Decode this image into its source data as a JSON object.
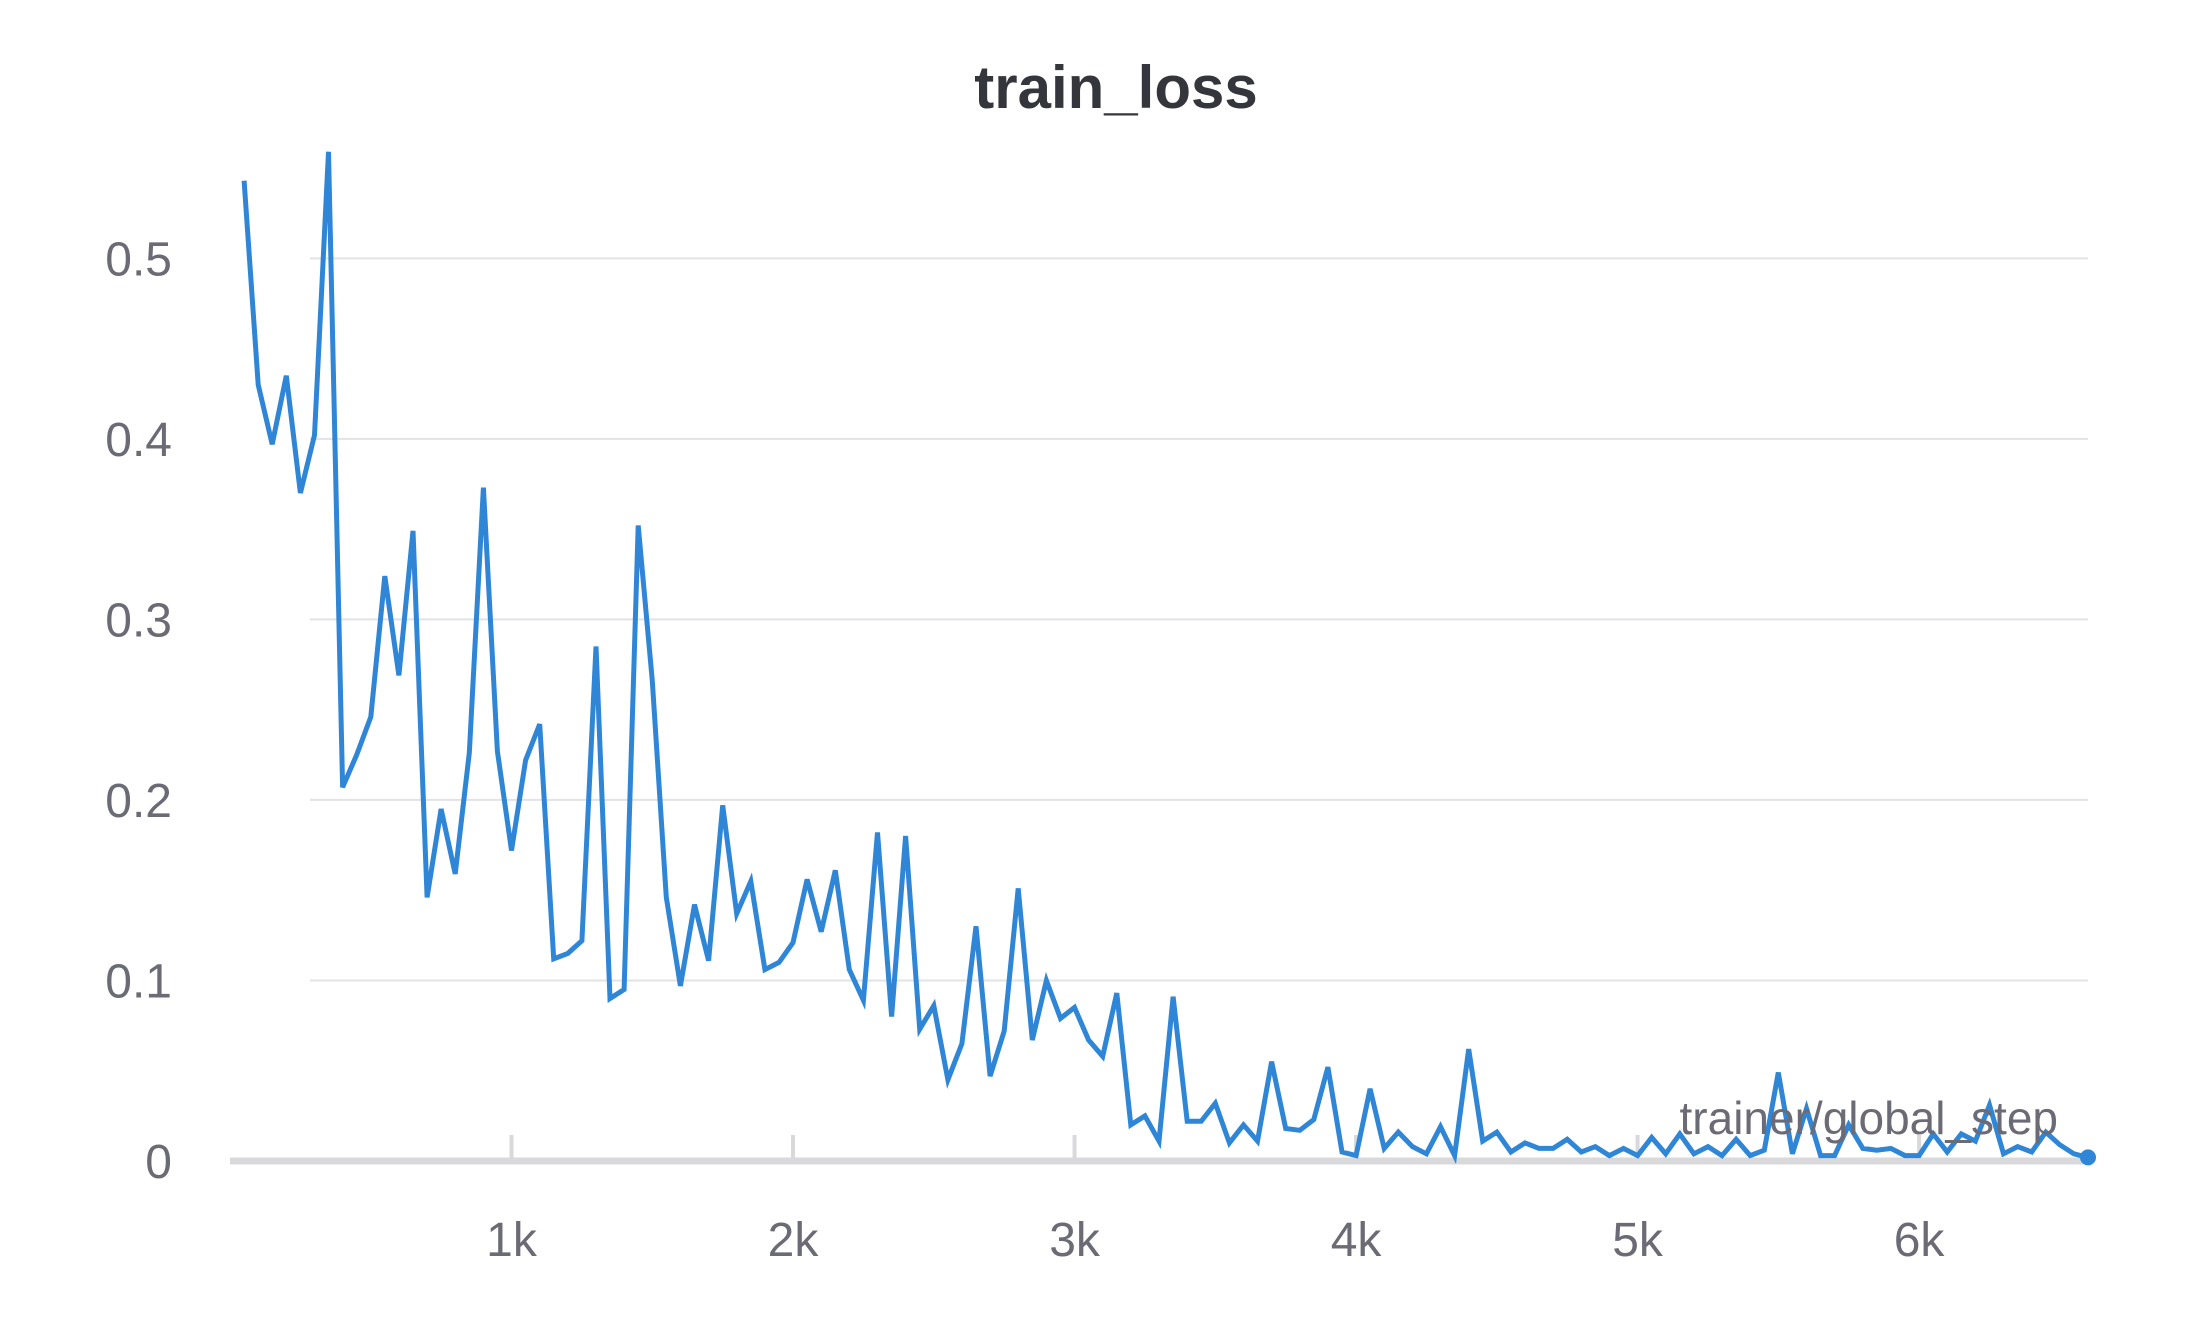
{
  "chart_data": {
    "type": "line",
    "title": "train_loss",
    "xlabel": "trainer/global_step",
    "ylabel": "",
    "xlim": [
      0,
      6600
    ],
    "ylim": [
      0,
      0.56
    ],
    "x_ticks": [
      1000,
      2000,
      3000,
      4000,
      5000,
      6000
    ],
    "x_tick_labels": [
      "1k",
      "2k",
      "3k",
      "4k",
      "5k",
      "6k"
    ],
    "y_ticks": [
      0,
      0.1,
      0.2,
      0.3,
      0.4,
      0.5
    ],
    "y_tick_labels": [
      "0",
      "0.1",
      "0.2",
      "0.3",
      "0.4",
      "0.5"
    ],
    "grid": true,
    "colors": {
      "line": "#2f86d6",
      "title": "#35363c",
      "tick": "#6b6b76",
      "grid": "#e3e3e6",
      "axis": "#d9d9dc"
    },
    "series": [
      {
        "x": [
          50,
          100,
          150,
          200,
          250,
          300,
          350,
          400,
          450,
          500,
          550,
          600,
          650,
          700,
          750,
          800,
          850,
          900,
          950,
          1000,
          1050,
          1100,
          1150,
          1200,
          1250,
          1300,
          1350,
          1400,
          1450,
          1500,
          1550,
          1600,
          1650,
          1700,
          1750,
          1800,
          1850,
          1900,
          1950,
          2000,
          2050,
          2100,
          2150,
          2200,
          2250,
          2300,
          2350,
          2400,
          2450,
          2500,
          2550,
          2600,
          2650,
          2700,
          2750,
          2800,
          2850,
          2900,
          2950,
          3000,
          3050,
          3100,
          3150,
          3200,
          3250,
          3300,
          3350,
          3400,
          3450,
          3500,
          3550,
          3600,
          3650,
          3700,
          3750,
          3800,
          3850,
          3900,
          3950,
          4000,
          4050,
          4100,
          4150,
          4200,
          4250,
          4300,
          4350,
          4400,
          4450,
          4500,
          4550,
          4600,
          4650,
          4700,
          4750,
          4800,
          4850,
          4900,
          4950,
          5000,
          5050,
          5100,
          5150,
          5200,
          5250,
          5300,
          5350,
          5400,
          5450,
          5500,
          5550,
          5600,
          5650,
          5700,
          5750,
          5800,
          5850,
          5900,
          5950,
          6000,
          6050,
          6100,
          6150,
          6200,
          6250,
          6300,
          6350,
          6400,
          6450,
          6500,
          6550,
          6600
        ],
        "y": [
          0.543,
          0.43,
          0.397,
          0.435,
          0.37,
          0.402,
          0.559,
          0.207,
          0.225,
          0.246,
          0.324,
          0.269,
          0.349,
          0.146,
          0.195,
          0.159,
          0.226,
          0.373,
          0.227,
          0.172,
          0.222,
          0.242,
          0.112,
          0.115,
          0.122,
          0.285,
          0.09,
          0.095,
          0.352,
          0.266,
          0.146,
          0.097,
          0.142,
          0.111,
          0.197,
          0.137,
          0.155,
          0.106,
          0.11,
          0.121,
          0.156,
          0.127,
          0.161,
          0.106,
          0.089,
          0.182,
          0.08,
          0.18,
          0.073,
          0.086,
          0.045,
          0.065,
          0.13,
          0.047,
          0.072,
          0.151,
          0.067,
          0.1,
          0.079,
          0.085,
          0.067,
          0.058,
          0.093,
          0.02,
          0.025,
          0.011,
          0.091,
          0.022,
          0.022,
          0.032,
          0.01,
          0.02,
          0.011,
          0.055,
          0.018,
          0.017,
          0.023,
          0.052,
          0.005,
          0.003,
          0.04,
          0.007,
          0.016,
          0.008,
          0.004,
          0.019,
          0.003,
          0.062,
          0.011,
          0.016,
          0.005,
          0.01,
          0.007,
          0.007,
          0.012,
          0.005,
          0.008,
          0.003,
          0.007,
          0.003,
          0.013,
          0.004,
          0.015,
          0.004,
          0.008,
          0.003,
          0.012,
          0.003,
          0.006,
          0.049,
          0.004,
          0.029,
          0.003,
          0.003,
          0.02,
          0.007,
          0.006,
          0.007,
          0.003,
          0.003,
          0.015,
          0.005,
          0.015,
          0.011,
          0.031,
          0.004,
          0.008,
          0.005,
          0.016,
          0.009,
          0.004,
          0.002
        ]
      }
    ]
  }
}
